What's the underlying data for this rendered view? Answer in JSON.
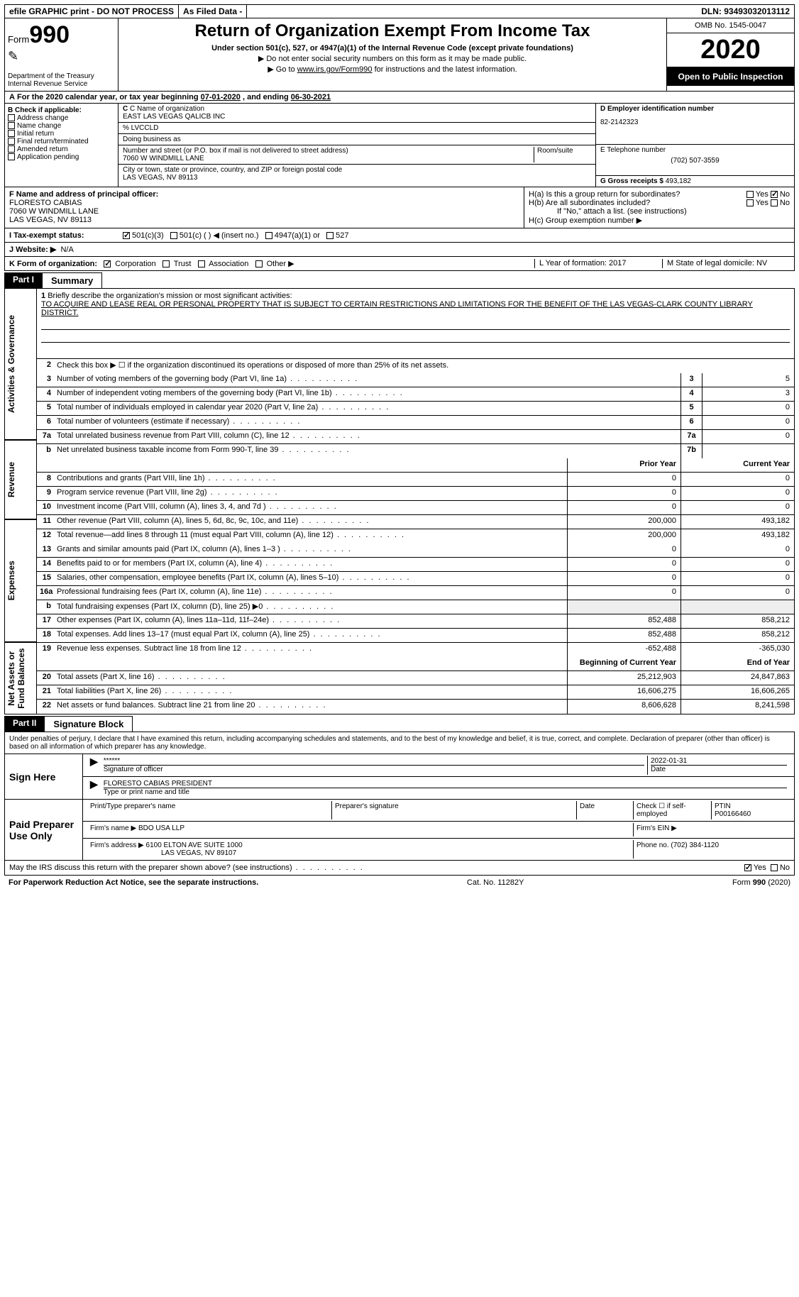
{
  "topbar": {
    "efile": "efile GRAPHIC print - DO NOT PROCESS",
    "asfiled": "As Filed Data -",
    "dln": "DLN: 93493032013112"
  },
  "header": {
    "form_label": "Form",
    "form_num": "990",
    "dept": "Department of the Treasury\nInternal Revenue Service",
    "title": "Return of Organization Exempt From Income Tax",
    "sub1": "Under section 501(c), 527, or 4947(a)(1) of the Internal Revenue Code (except private foundations)",
    "sub2": "▶ Do not enter social security numbers on this form as it may be made public.",
    "sub3_pre": "▶ Go to ",
    "sub3_link": "www.irs.gov/Form990",
    "sub3_post": " for instructions and the latest information.",
    "omb": "OMB No. 1545-0047",
    "year": "2020",
    "open": "Open to Public Inspection"
  },
  "rowA": {
    "label": "A",
    "text_pre": "For the 2020 calendar year, or tax year beginning ",
    "begin": "07-01-2020",
    "text_mid": " , and ending ",
    "end": "06-30-2021"
  },
  "B": {
    "label": "B Check if applicable:",
    "opts": [
      "Address change",
      "Name change",
      "Initial return",
      "Final return/terminated",
      "Amended return",
      "Application pending"
    ]
  },
  "C": {
    "name_lab": "C Name of organization",
    "name": "EAST LAS VEGAS QALICB INC",
    "care_lab": "% LVCCLD",
    "dba_lab": "Doing business as",
    "street_lab": "Number and street (or P.O. box if mail is not delivered to street address)",
    "room_lab": "Room/suite",
    "street": "7060 W WINDMILL LANE",
    "city_lab": "City or town, state or province, country, and ZIP or foreign postal code",
    "city": "LAS VEGAS, NV  89113"
  },
  "D": {
    "lab": "D Employer identification number",
    "val": "82-2142323"
  },
  "E": {
    "lab": "E Telephone number",
    "val": "(702) 507-3559"
  },
  "G": {
    "lab": "G Gross receipts $ ",
    "val": "493,182"
  },
  "F": {
    "lab": "F  Name and address of principal officer:",
    "name": "FLORESTO CABIAS",
    "addr1": "7060 W WINDMILL LANE",
    "addr2": "LAS VEGAS, NV  89113"
  },
  "H": {
    "a": "H(a)  Is this a group return for subordinates?",
    "b": "H(b)  Are all subordinates included?",
    "b_note": "If \"No,\" attach a list. (see instructions)",
    "c": "H(c)  Group exemption number ▶",
    "yes": "Yes",
    "no": "No"
  },
  "I": {
    "lab": "I   Tax-exempt status:",
    "o1": "501(c)(3)",
    "o2": "501(c) (   ) ◀ (insert no.)",
    "o3": "4947(a)(1) or",
    "o4": "527"
  },
  "J": {
    "lab": "J   Website: ▶",
    "val": "N/A"
  },
  "K": {
    "lab": "K Form of organization:",
    "o1": "Corporation",
    "o2": "Trust",
    "o3": "Association",
    "o4": "Other ▶",
    "L": "L Year of formation: 2017",
    "M": "M State of legal domicile: NV"
  },
  "part1": {
    "tag": "Part I",
    "title": "Summary"
  },
  "sidebars": {
    "s1": "Activities & Governance",
    "s2": "Revenue",
    "s3": "Expenses",
    "s4": "Net Assets or Fund Balances"
  },
  "mission": {
    "num": "1",
    "lab": "Briefly describe the organization's mission or most significant activities:",
    "text": "TO ACQUIRE AND LEASE REAL OR PERSONAL PROPERTY THAT IS SUBJECT TO CERTAIN RESTRICTIONS AND LIMITATIONS FOR THE BENEFIT OF THE LAS VEGAS-CLARK COUNTY LIBRARY DISTRICT."
  },
  "line2": {
    "num": "2",
    "text": "Check this box ▶ ☐ if the organization discontinued its operations or disposed of more than 25% of its net assets."
  },
  "lines_top": [
    {
      "num": "3",
      "desc": "Number of voting members of the governing body (Part VI, line 1a)",
      "box": "3",
      "val": "5"
    },
    {
      "num": "4",
      "desc": "Number of independent voting members of the governing body (Part VI, line 1b)",
      "box": "4",
      "val": "3"
    },
    {
      "num": "5",
      "desc": "Total number of individuals employed in calendar year 2020 (Part V, line 2a)",
      "box": "5",
      "val": "0"
    },
    {
      "num": "6",
      "desc": "Total number of volunteers (estimate if necessary)",
      "box": "6",
      "val": "0"
    },
    {
      "num": "7a",
      "desc": "Total unrelated business revenue from Part VIII, column (C), line 12",
      "box": "7a",
      "val": "0"
    },
    {
      "num": "b",
      "desc": "Net unrelated business taxable income from Form 990-T, line 39",
      "box": "7b",
      "val": ""
    }
  ],
  "col_hdrs": {
    "prior": "Prior Year",
    "current": "Current Year"
  },
  "revenue": [
    {
      "num": "8",
      "desc": "Contributions and grants (Part VIII, line 1h)",
      "p": "0",
      "c": "0"
    },
    {
      "num": "9",
      "desc": "Program service revenue (Part VIII, line 2g)",
      "p": "0",
      "c": "0"
    },
    {
      "num": "10",
      "desc": "Investment income (Part VIII, column (A), lines 3, 4, and 7d )",
      "p": "0",
      "c": "0"
    },
    {
      "num": "11",
      "desc": "Other revenue (Part VIII, column (A), lines 5, 6d, 8c, 9c, 10c, and 11e)",
      "p": "200,000",
      "c": "493,182"
    },
    {
      "num": "12",
      "desc": "Total revenue—add lines 8 through 11 (must equal Part VIII, column (A), line 12)",
      "p": "200,000",
      "c": "493,182"
    }
  ],
  "expenses": [
    {
      "num": "13",
      "desc": "Grants and similar amounts paid (Part IX, column (A), lines 1–3 )",
      "p": "0",
      "c": "0"
    },
    {
      "num": "14",
      "desc": "Benefits paid to or for members (Part IX, column (A), line 4)",
      "p": "0",
      "c": "0"
    },
    {
      "num": "15",
      "desc": "Salaries, other compensation, employee benefits (Part IX, column (A), lines 5–10)",
      "p": "0",
      "c": "0"
    },
    {
      "num": "16a",
      "desc": "Professional fundraising fees (Part IX, column (A), line 11e)",
      "p": "0",
      "c": "0"
    },
    {
      "num": "b",
      "desc": "Total fundraising expenses (Part IX, column (D), line 25) ▶0",
      "p": "",
      "c": "",
      "gray": true
    },
    {
      "num": "17",
      "desc": "Other expenses (Part IX, column (A), lines 11a–11d, 11f–24e)",
      "p": "852,488",
      "c": "858,212"
    },
    {
      "num": "18",
      "desc": "Total expenses. Add lines 13–17 (must equal Part IX, column (A), line 25)",
      "p": "852,488",
      "c": "858,212"
    },
    {
      "num": "19",
      "desc": "Revenue less expenses. Subtract line 18 from line 12",
      "p": "-652,488",
      "c": "-365,030"
    }
  ],
  "net_hdrs": {
    "begin": "Beginning of Current Year",
    "end": "End of Year"
  },
  "net": [
    {
      "num": "20",
      "desc": "Total assets (Part X, line 16)",
      "p": "25,212,903",
      "c": "24,847,863"
    },
    {
      "num": "21",
      "desc": "Total liabilities (Part X, line 26)",
      "p": "16,606,275",
      "c": "16,606,265"
    },
    {
      "num": "22",
      "desc": "Net assets or fund balances. Subtract line 21 from line 20",
      "p": "8,606,628",
      "c": "8,241,598"
    }
  ],
  "part2": {
    "tag": "Part II",
    "title": "Signature Block"
  },
  "sig": {
    "intro": "Under penalties of perjury, I declare that I have examined this return, including accompanying schedules and statements, and to the best of my knowledge and belief, it is true, correct, and complete. Declaration of preparer (other than officer) is based on all information of which preparer has any knowledge.",
    "sign_here": "Sign Here",
    "stars": "******",
    "sig_lab": "Signature of officer",
    "date": "2022-01-31",
    "date_lab": "Date",
    "name": "FLORESTO CABIAS  PRESIDENT",
    "name_lab": "Type or print name and title",
    "paid": "Paid Preparer Use Only",
    "prep_name_lab": "Print/Type preparer's name",
    "prep_sig_lab": "Preparer's signature",
    "prep_date_lab": "Date",
    "check_lab": "Check ☐ if self-employed",
    "ptin_lab": "PTIN",
    "ptin": "P00166460",
    "firm_name_lab": "Firm's name   ▶",
    "firm_name": "BDO USA LLP",
    "firm_ein_lab": "Firm's EIN ▶",
    "firm_addr_lab": "Firm's address ▶",
    "firm_addr": "6100 ELTON AVE SUITE 1000",
    "firm_addr2": "LAS VEGAS, NV  89107",
    "phone_lab": "Phone no. ",
    "phone": "(702) 384-1120",
    "discuss": "May the IRS discuss this return with the preparer shown above? (see instructions)",
    "yes": "Yes",
    "no": "No"
  },
  "footer": {
    "left": "For Paperwork Reduction Act Notice, see the separate instructions.",
    "mid": "Cat. No. 11282Y",
    "right": "Form 990 (2020)"
  }
}
